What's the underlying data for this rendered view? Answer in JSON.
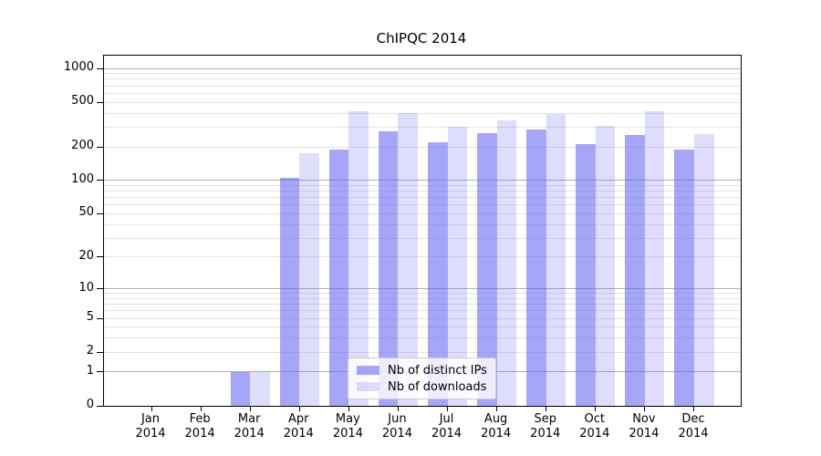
{
  "chart_data": {
    "type": "bar",
    "title": "ChIPQC 2014",
    "categories": [
      "Jan 2014",
      "Feb 2014",
      "Mar 2014",
      "Apr 2014",
      "May 2014",
      "Jun 2014",
      "Jul 2014",
      "Aug 2014",
      "Sep 2014",
      "Oct 2014",
      "Nov 2014",
      "Dec 2014"
    ],
    "series": [
      {
        "name": "Nb of distinct IPs",
        "color": "rgba(92,92,242,0.55)",
        "values": [
          0,
          0,
          1,
          105,
          188,
          277,
          220,
          265,
          286,
          210,
          257,
          188
        ]
      },
      {
        "name": "Nb of downloads",
        "color": "rgba(92,92,242,0.20)",
        "values": [
          0,
          0,
          1,
          177,
          418,
          398,
          301,
          345,
          395,
          306,
          416,
          260
        ]
      }
    ],
    "yscale": "log1p",
    "ylim": [
      0,
      1300
    ],
    "y_ticks": [
      1000,
      500,
      200,
      100,
      50,
      20,
      10,
      5,
      2,
      1,
      0
    ],
    "y_gridlines_decade": [
      1,
      10,
      100,
      1000
    ],
    "y_gridlines_light": [
      2,
      3,
      4,
      5,
      6,
      7,
      8,
      9,
      20,
      30,
      40,
      50,
      60,
      70,
      80,
      90,
      200,
      300,
      400,
      500,
      600,
      700,
      800,
      900
    ],
    "grid": true,
    "legend_position": "lower-center",
    "xlabel": "",
    "ylabel": ""
  },
  "colors": {
    "bar_base": "#5c5cf2",
    "grid_decade": "#b0b0b0",
    "grid_light": "#e4e4e4",
    "axis": "#000000",
    "legend_border": "#cccccc"
  }
}
